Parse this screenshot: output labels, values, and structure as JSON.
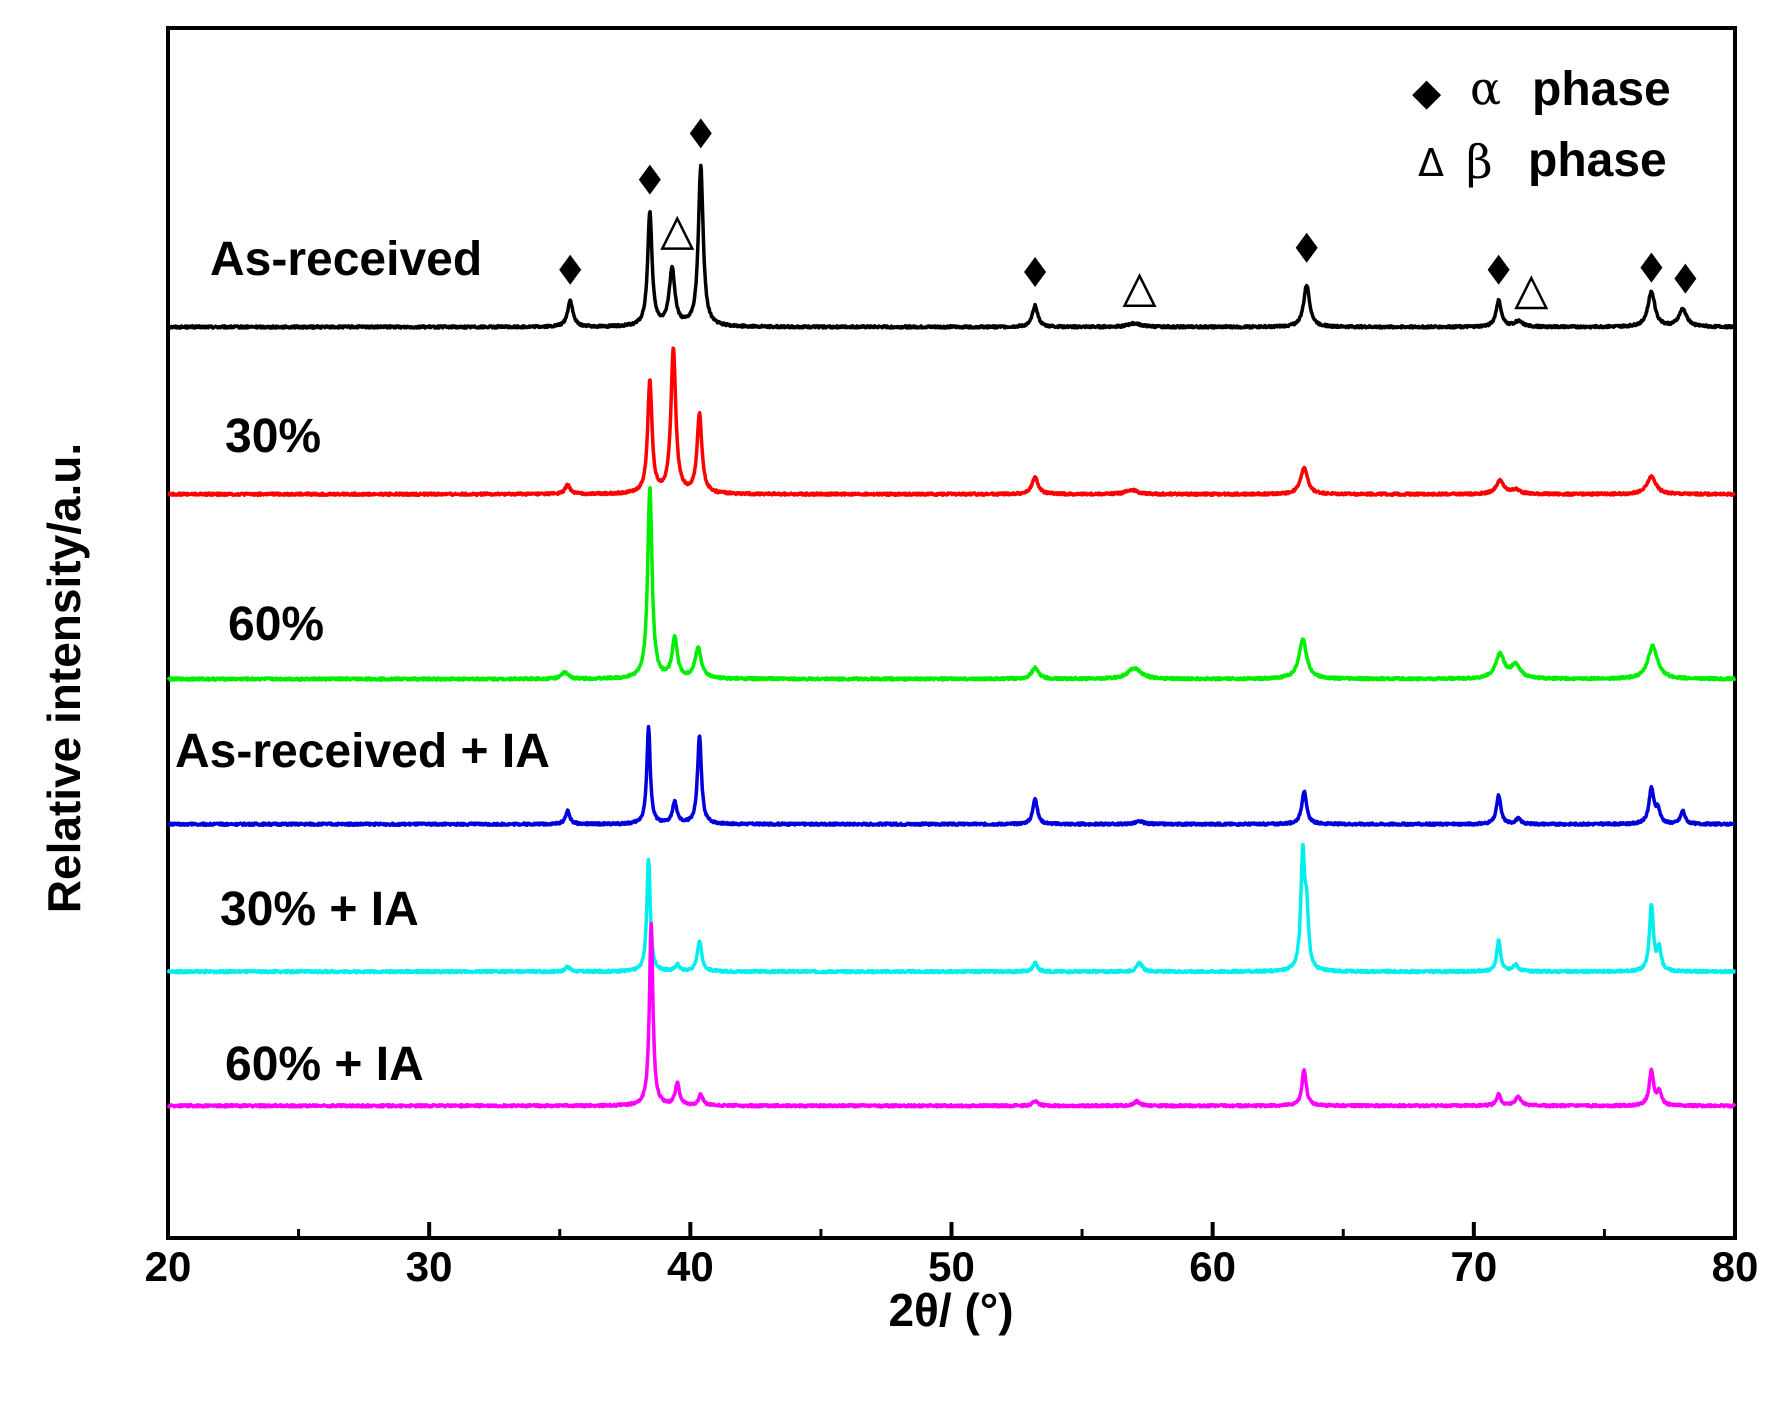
{
  "chart_data": {
    "type": "line",
    "title": "",
    "xlabel": "2θ/ (°)",
    "ylabel": "Relative intensity/a.u.",
    "xlim": [
      20,
      80
    ],
    "x_ticks": [
      20,
      30,
      40,
      50,
      60,
      70,
      80
    ],
    "x_tick_labels": [
      "20",
      "30",
      "40",
      "50",
      "60",
      "70",
      "80"
    ],
    "x_minor_ticks": [
      25,
      35,
      45,
      55,
      65,
      75
    ],
    "y_ticks_shown": false,
    "legend": {
      "position": "top-right",
      "entries": [
        {
          "symbol": "◆",
          "greek": "α",
          "label": "phase",
          "meaning": "alpha phase"
        },
        {
          "symbol": "Δ",
          "greek": "β",
          "label": "phase",
          "meaning": "beta phase"
        }
      ]
    },
    "series": [
      {
        "name": "As-received",
        "color": "#000000",
        "baseline": 0.0,
        "peaks": [
          {
            "x": 35.4,
            "h": 0.6,
            "w": 0.12
          },
          {
            "x": 38.45,
            "h": 2.6,
            "w": 0.1
          },
          {
            "x": 39.3,
            "h": 1.3,
            "w": 0.13
          },
          {
            "x": 40.4,
            "h": 3.65,
            "w": 0.11
          },
          {
            "x": 53.2,
            "h": 0.5,
            "w": 0.12
          },
          {
            "x": 57.0,
            "h": 0.08,
            "w": 0.3
          },
          {
            "x": 63.6,
            "h": 0.95,
            "w": 0.14
          },
          {
            "x": 70.95,
            "h": 0.6,
            "w": 0.12
          },
          {
            "x": 71.7,
            "h": 0.12,
            "w": 0.2
          },
          {
            "x": 76.8,
            "h": 0.8,
            "w": 0.16
          },
          {
            "x": 78.0,
            "h": 0.4,
            "w": 0.18
          }
        ],
        "markers": [
          {
            "x": 35.4,
            "type": "alpha",
            "level": 1.3
          },
          {
            "x": 38.45,
            "type": "alpha",
            "level": 3.35
          },
          {
            "x": 39.5,
            "type": "beta",
            "level": 2.1
          },
          {
            "x": 40.4,
            "type": "alpha",
            "level": 4.4
          },
          {
            "x": 53.2,
            "type": "alpha",
            "level": 1.25
          },
          {
            "x": 57.2,
            "type": "beta",
            "level": 0.8
          },
          {
            "x": 63.6,
            "type": "alpha",
            "level": 1.8
          },
          {
            "x": 70.95,
            "type": "alpha",
            "level": 1.3
          },
          {
            "x": 72.2,
            "type": "beta",
            "level": 0.75
          },
          {
            "x": 76.8,
            "type": "alpha",
            "level": 1.35
          },
          {
            "x": 78.1,
            "type": "alpha",
            "level": 1.1
          }
        ]
      },
      {
        "name": "30%",
        "color": "#ff0000",
        "baseline": -3.8,
        "peaks": [
          {
            "x": 35.3,
            "h": 0.2,
            "w": 0.12
          },
          {
            "x": 38.45,
            "h": 2.55,
            "w": 0.1
          },
          {
            "x": 39.35,
            "h": 3.3,
            "w": 0.11
          },
          {
            "x": 40.35,
            "h": 1.8,
            "w": 0.11
          },
          {
            "x": 53.2,
            "h": 0.38,
            "w": 0.14
          },
          {
            "x": 56.9,
            "h": 0.1,
            "w": 0.25
          },
          {
            "x": 63.5,
            "h": 0.6,
            "w": 0.16
          },
          {
            "x": 71.0,
            "h": 0.3,
            "w": 0.18
          },
          {
            "x": 71.6,
            "h": 0.1,
            "w": 0.2
          },
          {
            "x": 76.8,
            "h": 0.4,
            "w": 0.2
          }
        ]
      },
      {
        "name": "60%",
        "color": "#00ee00",
        "baseline": -8.0,
        "peaks": [
          {
            "x": 35.2,
            "h": 0.15,
            "w": 0.15
          },
          {
            "x": 38.45,
            "h": 4.35,
            "w": 0.1
          },
          {
            "x": 39.4,
            "h": 0.9,
            "w": 0.12
          },
          {
            "x": 40.3,
            "h": 0.7,
            "w": 0.14
          },
          {
            "x": 53.2,
            "h": 0.25,
            "w": 0.16
          },
          {
            "x": 57.0,
            "h": 0.25,
            "w": 0.3
          },
          {
            "x": 63.45,
            "h": 0.9,
            "w": 0.18
          },
          {
            "x": 71.0,
            "h": 0.55,
            "w": 0.2
          },
          {
            "x": 71.6,
            "h": 0.3,
            "w": 0.22
          },
          {
            "x": 76.85,
            "h": 0.75,
            "w": 0.22
          }
        ]
      },
      {
        "name": "As-received + IA",
        "color": "#0000dd",
        "baseline": -11.3,
        "peaks": [
          {
            "x": 35.3,
            "h": 0.3,
            "w": 0.1
          },
          {
            "x": 38.4,
            "h": 2.2,
            "w": 0.08
          },
          {
            "x": 39.4,
            "h": 0.5,
            "w": 0.1
          },
          {
            "x": 40.35,
            "h": 2.0,
            "w": 0.09
          },
          {
            "x": 53.2,
            "h": 0.6,
            "w": 0.1
          },
          {
            "x": 57.2,
            "h": 0.06,
            "w": 0.2
          },
          {
            "x": 63.5,
            "h": 0.75,
            "w": 0.11
          },
          {
            "x": 70.95,
            "h": 0.65,
            "w": 0.1
          },
          {
            "x": 71.7,
            "h": 0.12,
            "w": 0.12
          },
          {
            "x": 76.8,
            "h": 0.8,
            "w": 0.11
          },
          {
            "x": 77.05,
            "h": 0.3,
            "w": 0.1
          },
          {
            "x": 78.0,
            "h": 0.3,
            "w": 0.1
          }
        ]
      },
      {
        "name": "30% + IA",
        "color": "#00eeee",
        "baseline": -14.65,
        "peaks": [
          {
            "x": 35.3,
            "h": 0.12,
            "w": 0.1
          },
          {
            "x": 38.4,
            "h": 2.55,
            "w": 0.08
          },
          {
            "x": 39.5,
            "h": 0.15,
            "w": 0.1
          },
          {
            "x": 40.35,
            "h": 0.7,
            "w": 0.1
          },
          {
            "x": 53.2,
            "h": 0.2,
            "w": 0.1
          },
          {
            "x": 57.2,
            "h": 0.2,
            "w": 0.12
          },
          {
            "x": 63.45,
            "h": 2.6,
            "w": 0.09
          },
          {
            "x": 63.6,
            "h": 1.2,
            "w": 0.08
          },
          {
            "x": 70.95,
            "h": 0.7,
            "w": 0.09
          },
          {
            "x": 71.6,
            "h": 0.15,
            "w": 0.12
          },
          {
            "x": 76.8,
            "h": 1.5,
            "w": 0.09
          },
          {
            "x": 77.1,
            "h": 0.5,
            "w": 0.09
          }
        ]
      },
      {
        "name": "60% + IA",
        "color": "#ff00ff",
        "baseline": -17.7,
        "peaks": [
          {
            "x": 38.5,
            "h": 4.15,
            "w": 0.08
          },
          {
            "x": 39.5,
            "h": 0.5,
            "w": 0.1
          },
          {
            "x": 40.4,
            "h": 0.25,
            "w": 0.1
          },
          {
            "x": 53.2,
            "h": 0.1,
            "w": 0.12
          },
          {
            "x": 57.1,
            "h": 0.1,
            "w": 0.14
          },
          {
            "x": 63.5,
            "h": 0.8,
            "w": 0.1
          },
          {
            "x": 70.95,
            "h": 0.25,
            "w": 0.1
          },
          {
            "x": 71.7,
            "h": 0.2,
            "w": 0.14
          },
          {
            "x": 76.8,
            "h": 0.8,
            "w": 0.1
          },
          {
            "x": 77.1,
            "h": 0.3,
            "w": 0.1
          }
        ]
      }
    ]
  }
}
